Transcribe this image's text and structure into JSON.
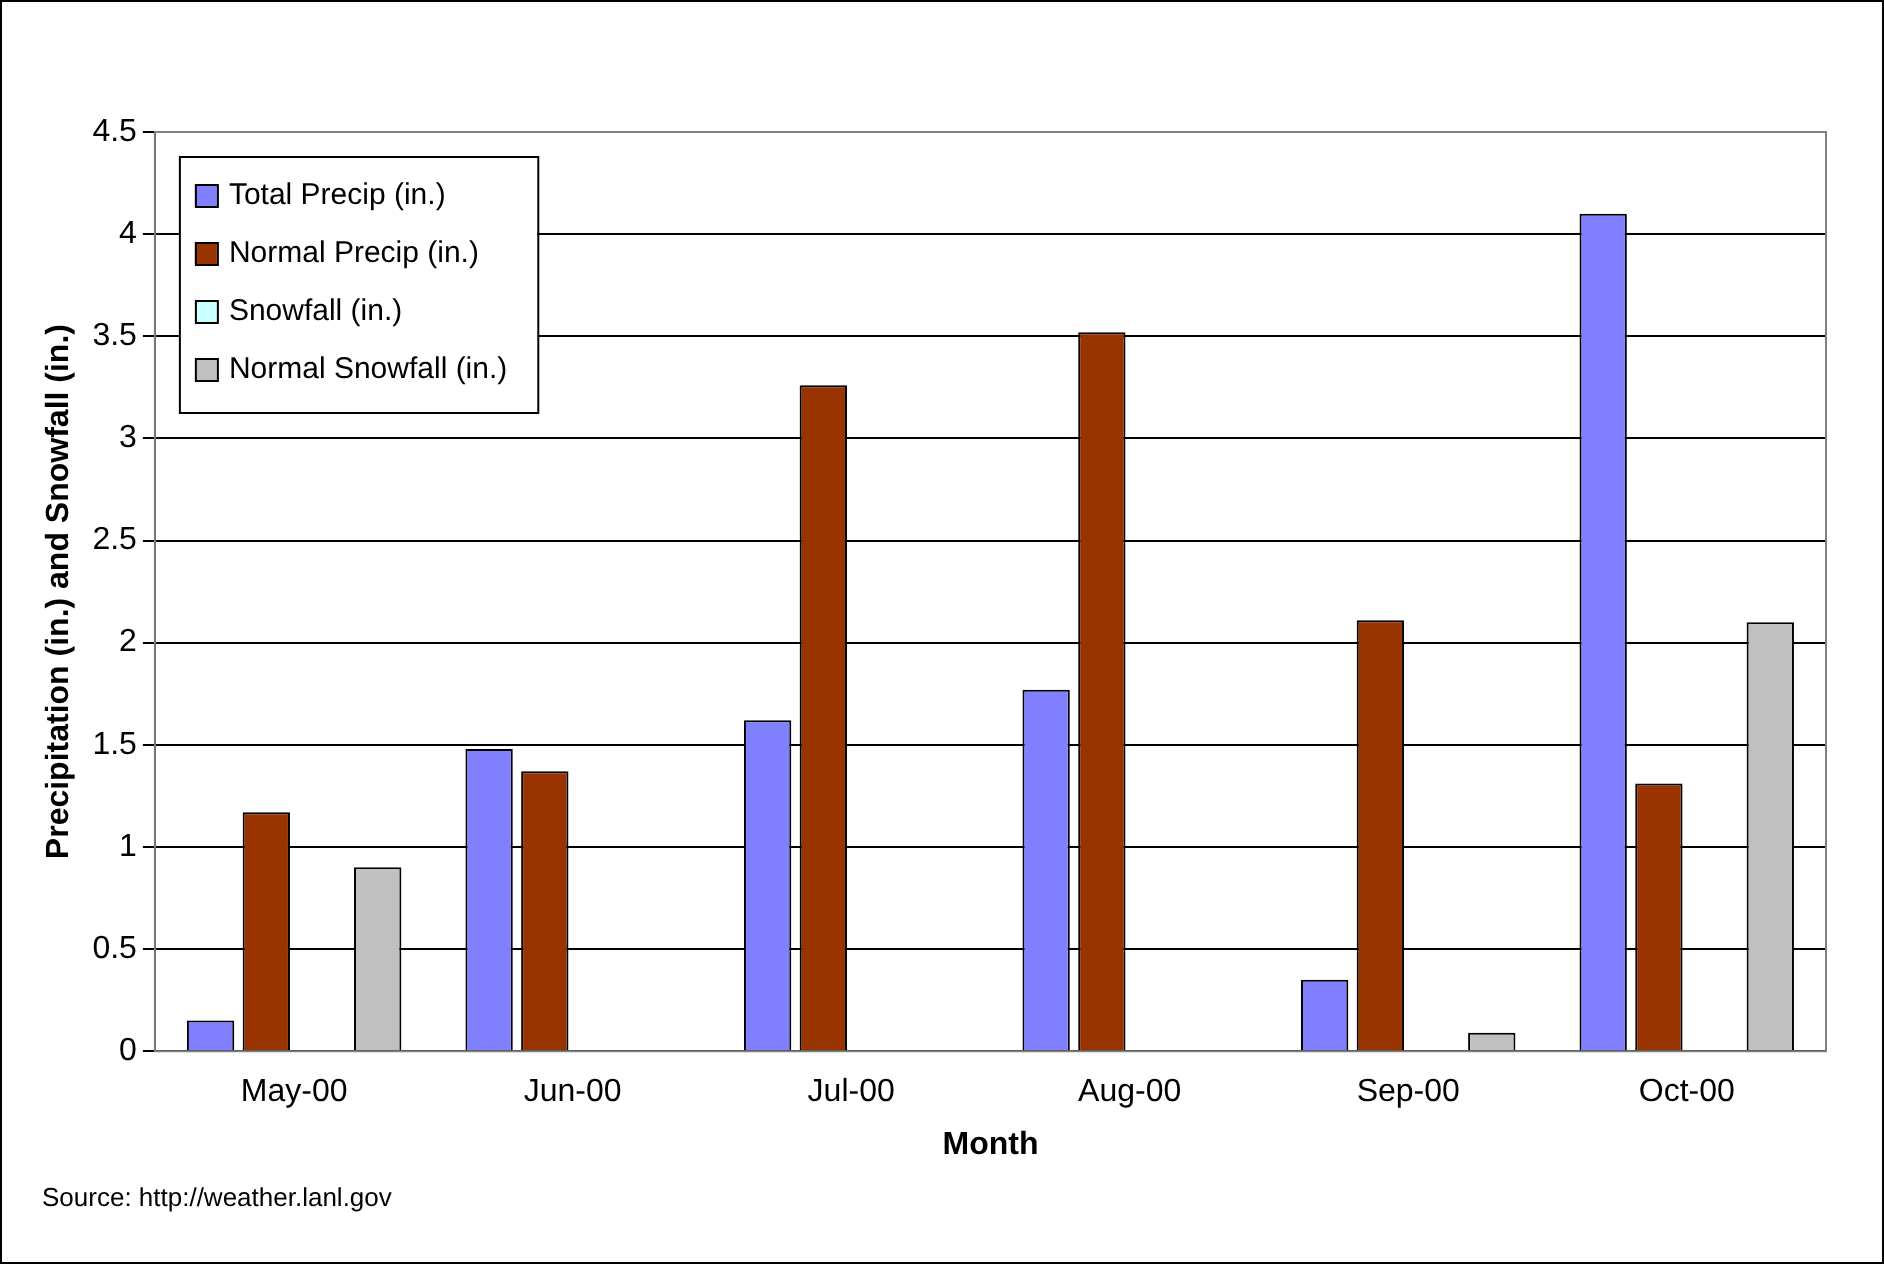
{
  "chart_data": {
    "type": "bar",
    "xlabel": "Month",
    "ylabel": "Precipitation (in.) and Snowfall (in.)",
    "categories": [
      "May-00",
      "Jun-00",
      "Jul-00",
      "Aug-00",
      "Sep-00",
      "Oct-00"
    ],
    "series": [
      {
        "name": "Total Precip (in.)",
        "color": "#8080ff",
        "values": [
          0.15,
          1.48,
          1.62,
          1.77,
          0.35,
          4.1
        ]
      },
      {
        "name": "Normal Precip (in.)",
        "color": "#993300",
        "values": [
          1.17,
          1.37,
          3.26,
          3.52,
          2.11,
          1.31
        ]
      },
      {
        "name": "Snowfall (in.)",
        "color": "#ccffff",
        "values": [
          0,
          0,
          0,
          0,
          0,
          0
        ]
      },
      {
        "name": "Normal Snowfall (in.)",
        "color": "#c0c0c0",
        "values": [
          0.9,
          0,
          0,
          0,
          0.09,
          2.1
        ]
      }
    ],
    "ylim": [
      0,
      4.5
    ],
    "yticks": [
      0,
      0.5,
      1,
      1.5,
      2,
      2.5,
      3,
      3.5,
      4,
      4.5
    ],
    "grid": "y",
    "legend": "top left",
    "annotations": [
      "Source: http://weather.lanl.gov"
    ]
  }
}
